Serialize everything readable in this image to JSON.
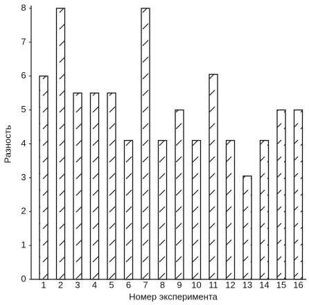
{
  "chart_data": {
    "type": "bar",
    "xlabel": "Номер эксперимента",
    "ylabel": "Разность",
    "categories": [
      "1",
      "2",
      "3",
      "4",
      "5",
      "6",
      "7",
      "8",
      "9",
      "10",
      "11",
      "12",
      "13",
      "14",
      "15",
      "16"
    ],
    "values": [
      6,
      8,
      5.5,
      5.5,
      5.5,
      4.1,
      8,
      4.1,
      5,
      4.1,
      6.05,
      4.1,
      3.05,
      4.1,
      5,
      5
    ],
    "color": "#ffffff",
    "ylim": [
      0,
      8
    ],
    "yticks": [
      0,
      1,
      2,
      3,
      4,
      5,
      6,
      7,
      8
    ],
    "grid": false
  }
}
